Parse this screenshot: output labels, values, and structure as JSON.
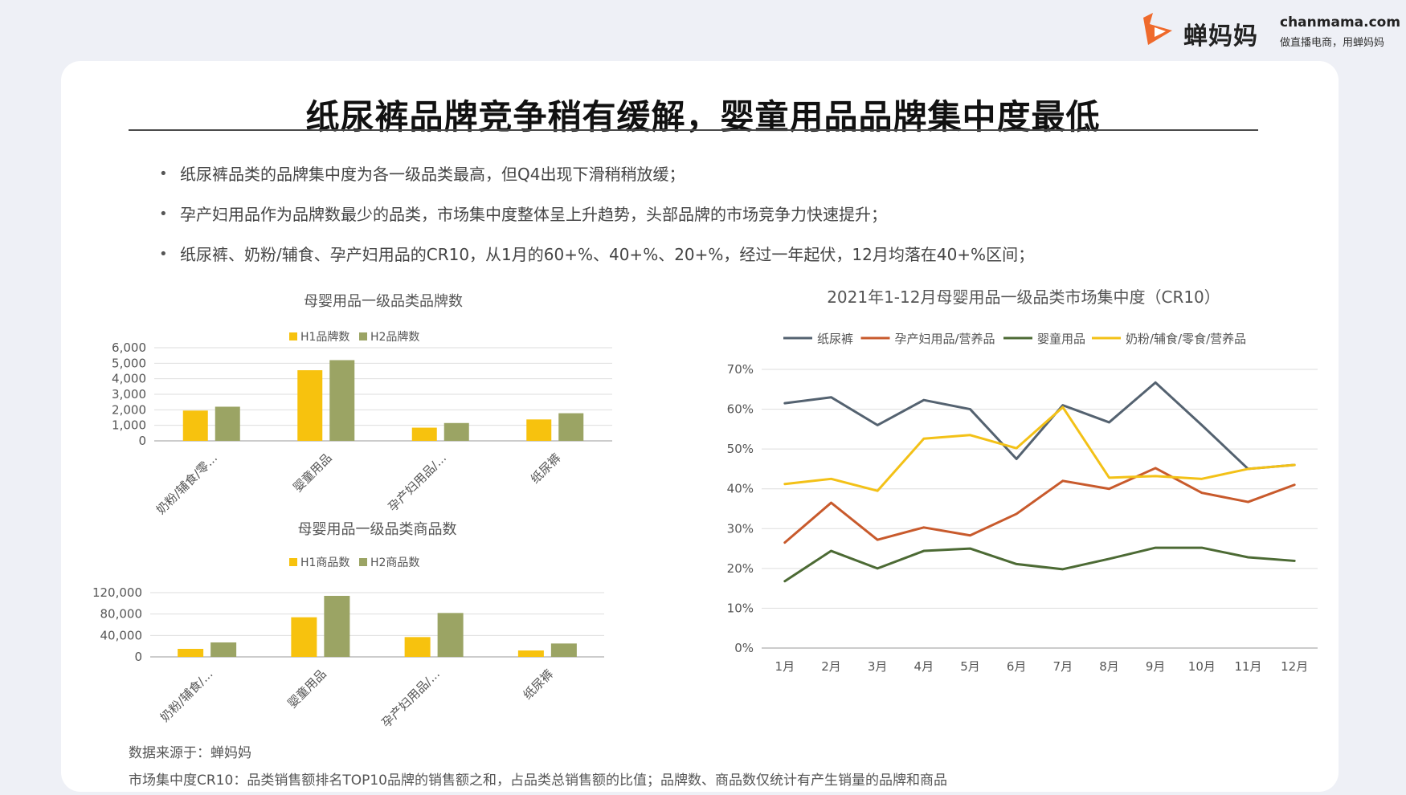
{
  "brand": {
    "name": "蝉妈妈",
    "site": "chanmama.com",
    "slogan": "做直播电商，用蝉妈妈",
    "accent": "#ef6a2c"
  },
  "title": "纸尿裤品牌竞争稍有缓解，婴童用品品牌集中度最低",
  "bullets": [
    "纸尿裤品类的品牌集中度为各一级品类最高，但Q4出现下滑稍稍放缓；",
    "孕产妇用品作为品牌数最少的品类，市场集中度整体呈上升趋势，头部品牌的市场竞争力快速提升；",
    "纸尿裤、奶粉/辅食、孕产妇用品的CR10，从1月的60+%、40+%、20+%，经过一年起伏，12月均落在40+%区间；"
  ],
  "chart_data": [
    {
      "type": "bar",
      "title": "母婴用品一级品类品牌数",
      "categories": [
        "奶粉/辅食/零...",
        "婴童用品",
        "孕产妇用品/...",
        "纸尿裤"
      ],
      "series": [
        {
          "name": "H1品牌数",
          "values": [
            1950,
            4550,
            850,
            1380
          ],
          "color": "#f7c20e"
        },
        {
          "name": "H2品牌数",
          "values": [
            2200,
            5200,
            1150,
            1780
          ],
          "color": "#9ba464"
        }
      ],
      "ylim": [
        0,
        6000
      ],
      "yticks": [
        "0",
        "1,000",
        "2,000",
        "3,000",
        "4,000",
        "5,000",
        "6,000"
      ],
      "grid": true,
      "legend": "top"
    },
    {
      "type": "bar",
      "title": "母婴用品一级品类商品数",
      "categories": [
        "奶粉/辅食/...",
        "婴童用品",
        "孕产妇用品/...",
        "纸尿裤"
      ],
      "series": [
        {
          "name": "H1商品数",
          "values": [
            15000,
            74000,
            37000,
            12000
          ],
          "color": "#f7c20e"
        },
        {
          "name": "H2商品数",
          "values": [
            27000,
            114000,
            82000,
            25000
          ],
          "color": "#9ba464"
        }
      ],
      "ylim": [
        0,
        120000
      ],
      "yticks": [
        "0",
        "40,000",
        "80,000",
        "120,000"
      ],
      "grid": true,
      "legend": "top"
    },
    {
      "type": "line",
      "title": "2021年1-12月母婴用品一级品类市场集中度（CR10）",
      "x": [
        "1月",
        "2月",
        "3月",
        "4月",
        "5月",
        "6月",
        "7月",
        "8月",
        "9月",
        "10月",
        "11月",
        "12月"
      ],
      "series": [
        {
          "name": "纸尿裤",
          "values": [
            61.5,
            63.0,
            56.0,
            62.3,
            60.0,
            47.5,
            61.0,
            56.7,
            66.7,
            56.0,
            45.0,
            46.0
          ],
          "color": "#546270"
        },
        {
          "name": "孕产妇用品/营养品",
          "values": [
            26.5,
            36.5,
            27.2,
            30.3,
            28.3,
            33.7,
            42.0,
            40.0,
            45.2,
            39.0,
            36.7,
            41.0
          ],
          "color": "#c85a2c"
        },
        {
          "name": "婴童用品",
          "values": [
            16.8,
            24.4,
            20.0,
            24.4,
            25.0,
            21.1,
            19.8,
            22.4,
            25.2,
            25.2,
            22.8,
            21.9
          ],
          "color": "#4c6a34"
        },
        {
          "name": "奶粉/辅食/零食/营养品",
          "values": [
            41.2,
            42.5,
            39.5,
            52.6,
            53.5,
            50.2,
            60.5,
            42.8,
            43.2,
            42.5,
            45.0,
            46.0
          ],
          "color": "#f3c117"
        }
      ],
      "ylim": [
        0,
        70
      ],
      "yticks": [
        "0%",
        "10%",
        "20%",
        "30%",
        "40%",
        "50%",
        "60%",
        "70%"
      ],
      "grid": true,
      "legend": "top"
    }
  ],
  "source_note": "数据来源于：蝉妈妈",
  "definition_note": "市场集中度CR10：品类销售额排名TOP10品牌的销售额之和，占品类总销售额的比值；品牌数、商品数仅统计有产生销量的品牌和商品"
}
